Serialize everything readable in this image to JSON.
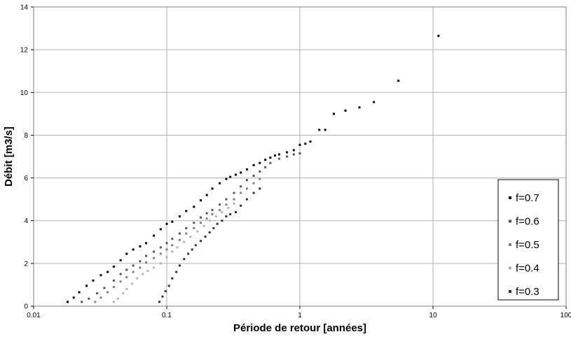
{
  "chart_data": {
    "type": "scatter",
    "title": "",
    "xlabel": "Période de retour [années]",
    "ylabel": "Débit [m3/s]",
    "xscale": "log",
    "xlim": [
      0.01,
      100
    ],
    "ylim": [
      0,
      14
    ],
    "xticks": [
      "0.01",
      "0.1",
      "1",
      "10",
      "100"
    ],
    "yticks": [
      "0",
      "2",
      "4",
      "6",
      "8",
      "10",
      "12",
      "14"
    ],
    "grid": true,
    "legend_position": "right",
    "series": [
      {
        "name": "f=0.7",
        "color": "#000000",
        "x": [
          0.018,
          0.02,
          0.022,
          0.025,
          0.028,
          0.032,
          0.036,
          0.04,
          0.045,
          0.05,
          0.056,
          0.063,
          0.07,
          0.08,
          0.09,
          0.1,
          0.11,
          0.125,
          0.14,
          0.16,
          0.18,
          0.2,
          0.22,
          0.25,
          0.28,
          0.3,
          0.33,
          0.36,
          0.4,
          0.45,
          0.5,
          0.55,
          0.6,
          0.65,
          0.7,
          0.8,
          0.9,
          1.0,
          1.1,
          1.2,
          1.4,
          1.55,
          1.8,
          2.2,
          2.8,
          3.6,
          5.5,
          11
        ],
        "y": [
          0.2,
          0.4,
          0.65,
          0.95,
          1.2,
          1.45,
          1.6,
          1.85,
          2.15,
          2.45,
          2.65,
          2.8,
          2.95,
          3.3,
          3.6,
          3.85,
          3.95,
          4.2,
          4.45,
          4.65,
          4.95,
          5.2,
          5.5,
          5.75,
          5.95,
          6.05,
          6.15,
          6.25,
          6.4,
          6.6,
          6.7,
          6.85,
          6.95,
          7.05,
          7.1,
          7.2,
          7.3,
          7.55,
          7.6,
          7.7,
          8.25,
          8.25,
          9.0,
          9.15,
          9.3,
          9.55,
          10.55,
          12.65
        ]
      },
      {
        "name": "f=0.6",
        "color": "#555555",
        "x": [
          0.023,
          0.026,
          0.03,
          0.034,
          0.04,
          0.045,
          0.05,
          0.056,
          0.063,
          0.07,
          0.08,
          0.09,
          0.1,
          0.11,
          0.125,
          0.14,
          0.16,
          0.18,
          0.2,
          0.22,
          0.25,
          0.28,
          0.32,
          0.36,
          0.4,
          0.45,
          0.5,
          0.55,
          0.6,
          0.7,
          0.8,
          0.9,
          1.0
        ],
        "y": [
          0.2,
          0.35,
          0.6,
          0.85,
          1.2,
          1.5,
          1.7,
          1.9,
          2.1,
          2.35,
          2.55,
          2.75,
          2.95,
          3.15,
          3.4,
          3.65,
          3.9,
          4.15,
          4.35,
          4.5,
          4.75,
          5.0,
          5.3,
          5.6,
          5.9,
          6.1,
          6.3,
          6.5,
          6.7,
          6.9,
          7.0,
          7.1,
          7.15
        ]
      },
      {
        "name": "f=0.5",
        "color": "#808080",
        "x": [
          0.029,
          0.032,
          0.036,
          0.04,
          0.045,
          0.05,
          0.056,
          0.063,
          0.07,
          0.08,
          0.09,
          0.1,
          0.11,
          0.125,
          0.14,
          0.16,
          0.18,
          0.2,
          0.22,
          0.25,
          0.28,
          0.32,
          0.36,
          0.4,
          0.45,
          0.5
        ],
        "y": [
          0.2,
          0.4,
          0.65,
          0.9,
          1.15,
          1.35,
          1.6,
          1.8,
          2.05,
          2.25,
          2.45,
          2.65,
          2.85,
          3.1,
          3.4,
          3.65,
          3.9,
          4.1,
          4.3,
          4.5,
          4.75,
          5.0,
          5.3,
          5.5,
          5.75,
          5.95
        ]
      },
      {
        "name": "f=0.4",
        "color": "#b3b3b3",
        "x": [
          0.04,
          0.043,
          0.047,
          0.05,
          0.055,
          0.06,
          0.066,
          0.072,
          0.08,
          0.09,
          0.1,
          0.11,
          0.12,
          0.135,
          0.15,
          0.17,
          0.19,
          0.21,
          0.235,
          0.26,
          0.29,
          0.32
        ],
        "y": [
          0.2,
          0.35,
          0.6,
          0.8,
          1.05,
          1.3,
          1.5,
          1.65,
          1.8,
          2.0,
          2.3,
          2.55,
          2.75,
          3.0,
          3.25,
          3.5,
          3.75,
          4.0,
          4.2,
          4.4,
          4.6,
          4.8
        ]
      },
      {
        "name": "f=0.3",
        "color": "#333333",
        "x": [
          0.088,
          0.093,
          0.098,
          0.104,
          0.11,
          0.118,
          0.125,
          0.135,
          0.145,
          0.155,
          0.165,
          0.18,
          0.195,
          0.21,
          0.225,
          0.24,
          0.26,
          0.28,
          0.3,
          0.33,
          0.36,
          0.4,
          0.45,
          0.5
        ],
        "y": [
          0.2,
          0.45,
          0.7,
          0.95,
          1.3,
          1.6,
          1.9,
          2.2,
          2.45,
          2.65,
          2.85,
          3.05,
          3.25,
          3.45,
          3.65,
          3.85,
          4.0,
          4.2,
          4.3,
          4.4,
          4.7,
          5.0,
          5.3,
          5.5
        ]
      }
    ]
  }
}
